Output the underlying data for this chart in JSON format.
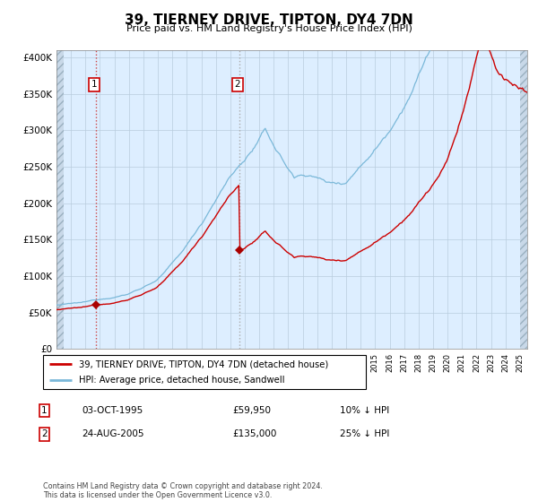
{
  "title": "39, TIERNEY DRIVE, TIPTON, DY4 7DN",
  "subtitle": "Price paid vs. HM Land Registry's House Price Index (HPI)",
  "legend_line1": "39, TIERNEY DRIVE, TIPTON, DY4 7DN (detached house)",
  "legend_line2": "HPI: Average price, detached house, Sandwell",
  "table_row1_date": "03-OCT-1995",
  "table_row1_price": "£59,950",
  "table_row1_hpi": "10% ↓ HPI",
  "table_row2_date": "24-AUG-2005",
  "table_row2_price": "£135,000",
  "table_row2_hpi": "25% ↓ HPI",
  "footer": "Contains HM Land Registry data © Crown copyright and database right 2024.\nThis data is licensed under the Open Government Licence v3.0.",
  "hpi_line_color": "#7ab8d9",
  "price_line_color": "#cc0000",
  "marker_color": "#aa0000",
  "vline_color": "#aaaaaa",
  "bg_color": "#ddeeff",
  "grid_color": "#b8ccdd",
  "purchase1_x": 1995.75,
  "purchase1_y": 59950,
  "purchase2_x": 2005.65,
  "purchase2_y": 135000,
  "xlim_left": 1993.0,
  "xlim_right": 2025.5,
  "ylim_bottom": 0,
  "ylim_top": 410000,
  "yticks": [
    0,
    50000,
    100000,
    150000,
    200000,
    250000,
    300000,
    350000,
    400000
  ],
  "ytick_labels": [
    "£0",
    "£50K",
    "£100K",
    "£150K",
    "£200K",
    "£250K",
    "£300K",
    "£350K",
    "£400K"
  ]
}
